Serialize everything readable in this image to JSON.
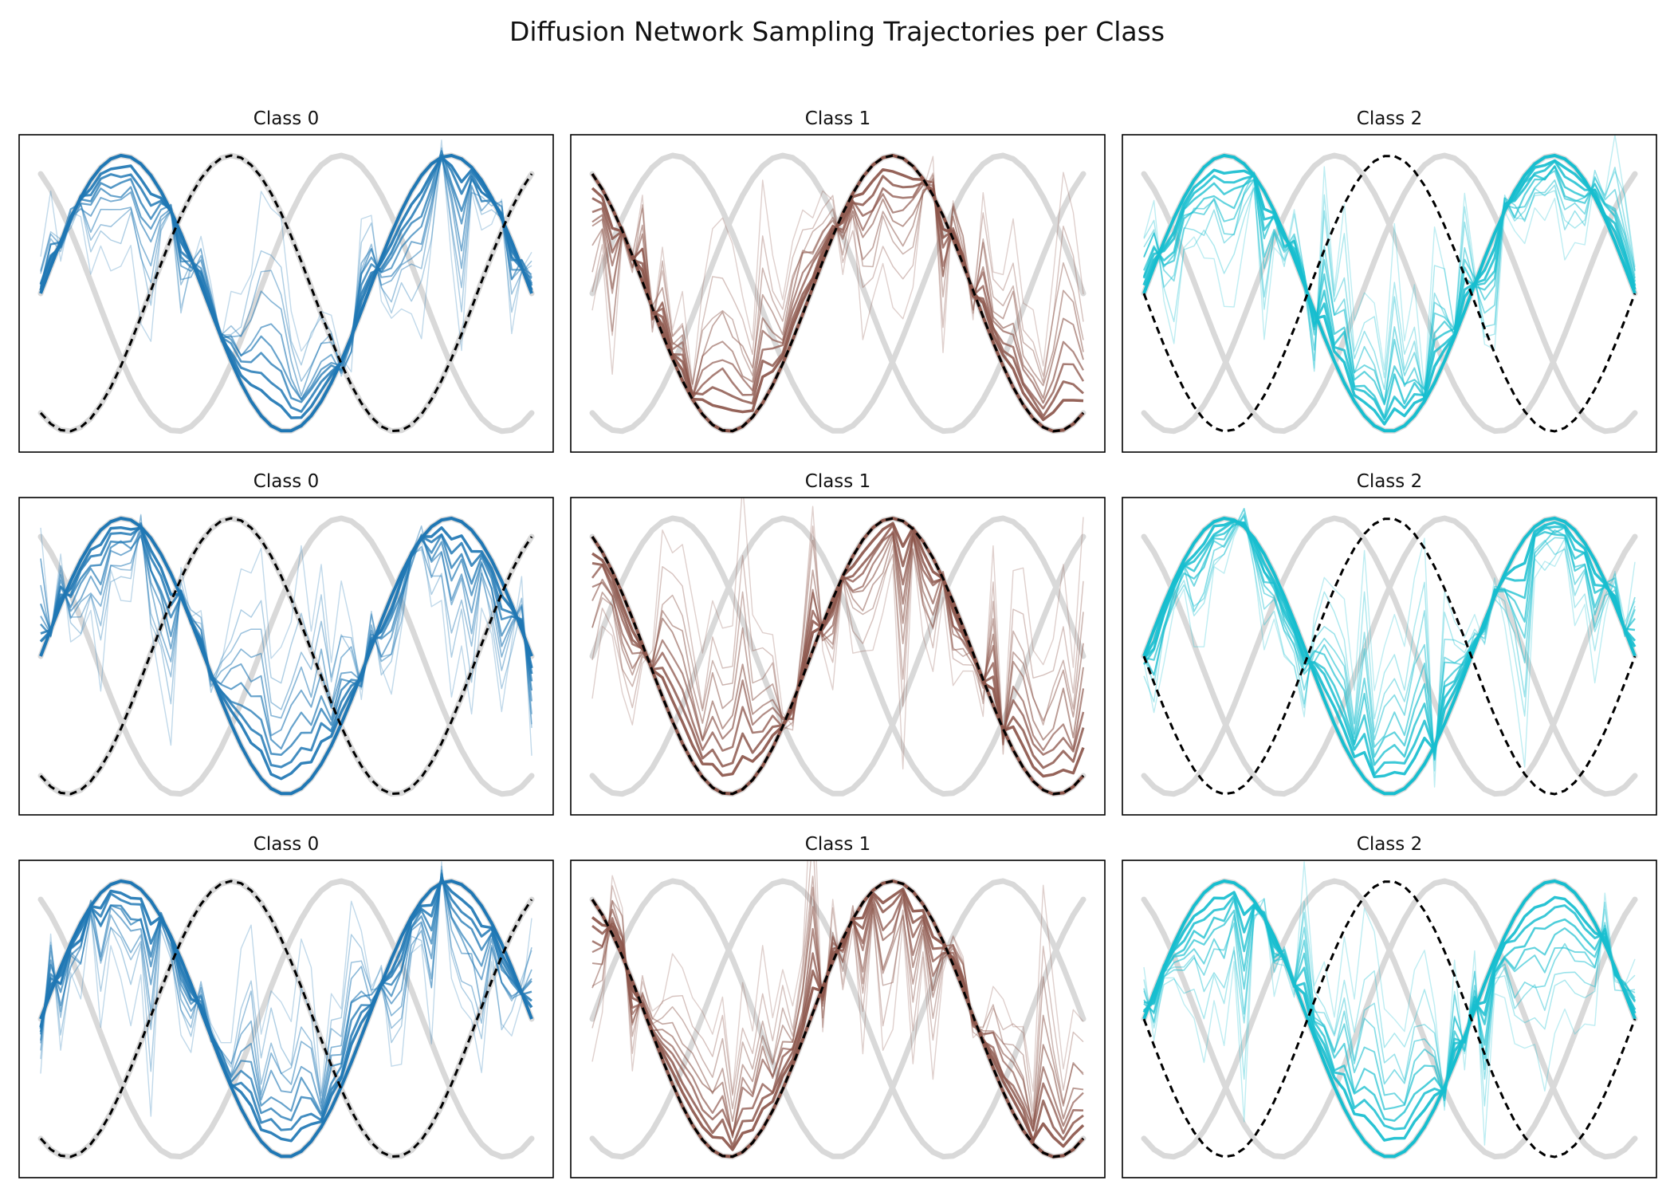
{
  "figure": {
    "title": "Diffusion Network Sampling Trajectories per Class"
  },
  "colors": {
    "background": "#ffffff",
    "axes_frame": "#000000",
    "reference_curves": "#d9d9d9",
    "target_dashed": "#000000",
    "class_0": "#1f77b4",
    "class_1": "#8c564b",
    "class_2": "#17becf"
  },
  "chart_data": {
    "type": "line",
    "layout": "3x3 grid",
    "x": {
      "n_points": 50,
      "range": [
        0,
        1
      ]
    },
    "ylim": [
      -1.15,
      1.15
    ],
    "axes_ticks": false,
    "grid": false,
    "legend": false,
    "reference_curves": [
      {
        "function": "sin",
        "phase": 0,
        "amplitude": 1
      },
      {
        "function": "sin",
        "phase": 2.094,
        "amplitude": 1
      },
      {
        "function": "sin",
        "phase": 4.189,
        "amplitude": 1
      }
    ],
    "trajectory_steps": 10,
    "panels": [
      {
        "title": "Class 0",
        "class": 0,
        "color": "#1f77b4",
        "target_phase": 0,
        "dashed_phase": 4.189,
        "noise_seed": 11
      },
      {
        "title": "Class 1",
        "class": 1,
        "color": "#8c564b",
        "target_phase": 2.094,
        "dashed_phase": 2.094,
        "noise_seed": 12
      },
      {
        "title": "Class 2",
        "class": 2,
        "color": "#17becf",
        "target_phase": 0,
        "dashed_phase": 3.14159,
        "noise_seed": 13
      },
      {
        "title": "Class 0",
        "class": 0,
        "color": "#1f77b4",
        "target_phase": 0,
        "dashed_phase": 4.189,
        "noise_seed": 21
      },
      {
        "title": "Class 1",
        "class": 1,
        "color": "#8c564b",
        "target_phase": 2.094,
        "dashed_phase": 2.094,
        "noise_seed": 22
      },
      {
        "title": "Class 2",
        "class": 2,
        "color": "#17becf",
        "target_phase": 0,
        "dashed_phase": 3.14159,
        "noise_seed": 23
      },
      {
        "title": "Class 0",
        "class": 0,
        "color": "#1f77b4",
        "target_phase": 0,
        "dashed_phase": 4.189,
        "noise_seed": 31
      },
      {
        "title": "Class 1",
        "class": 1,
        "color": "#8c564b",
        "target_phase": 2.094,
        "dashed_phase": 2.094,
        "noise_seed": 32
      },
      {
        "title": "Class 2",
        "class": 2,
        "color": "#17becf",
        "target_phase": 0,
        "dashed_phase": 3.14159,
        "noise_seed": 33
      }
    ]
  }
}
